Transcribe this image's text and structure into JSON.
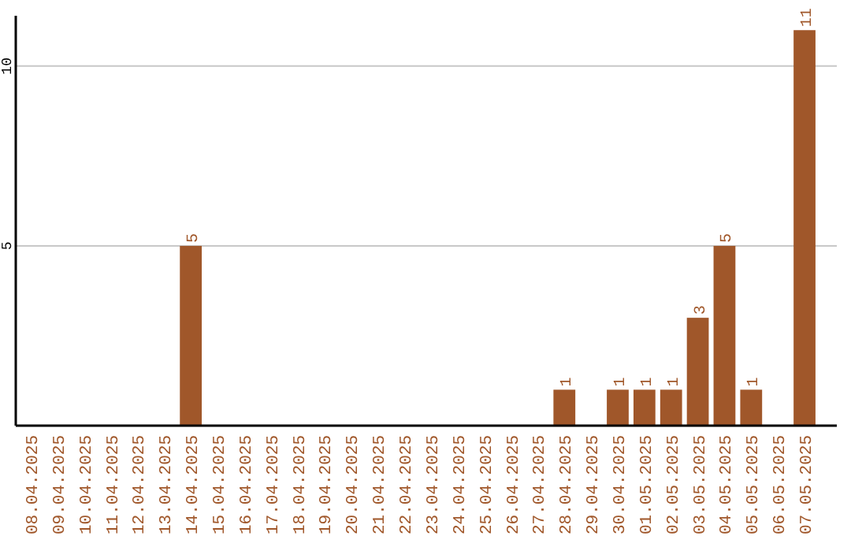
{
  "chart_data": {
    "type": "bar",
    "categories": [
      "08.04.2025",
      "09.04.2025",
      "10.04.2025",
      "11.04.2025",
      "12.04.2025",
      "13.04.2025",
      "14.04.2025",
      "15.04.2025",
      "16.04.2025",
      "17.04.2025",
      "18.04.2025",
      "19.04.2025",
      "20.04.2025",
      "21.04.2025",
      "22.04.2025",
      "23.04.2025",
      "24.04.2025",
      "25.04.2025",
      "26.04.2025",
      "27.04.2025",
      "28.04.2025",
      "29.04.2025",
      "30.04.2025",
      "01.05.2025",
      "02.05.2025",
      "03.05.2025",
      "04.05.2025",
      "05.05.2025",
      "06.05.2025",
      "07.05.2025"
    ],
    "values": [
      0,
      0,
      0,
      0,
      0,
      0,
      5,
      0,
      0,
      0,
      0,
      0,
      0,
      0,
      0,
      0,
      0,
      0,
      0,
      0,
      1,
      0,
      1,
      1,
      1,
      3,
      5,
      1,
      0,
      11
    ],
    "value_labels": [
      null,
      null,
      null,
      null,
      null,
      null,
      "5",
      null,
      null,
      null,
      null,
      null,
      null,
      null,
      null,
      null,
      null,
      null,
      null,
      null,
      "1",
      null,
      "1",
      "1",
      "1",
      "3",
      "5",
      "1",
      null,
      "11"
    ],
    "color": "#a0572a",
    "ylim": [
      0,
      11.4
    ],
    "yticks": [
      5,
      10
    ],
    "grid": "y"
  }
}
